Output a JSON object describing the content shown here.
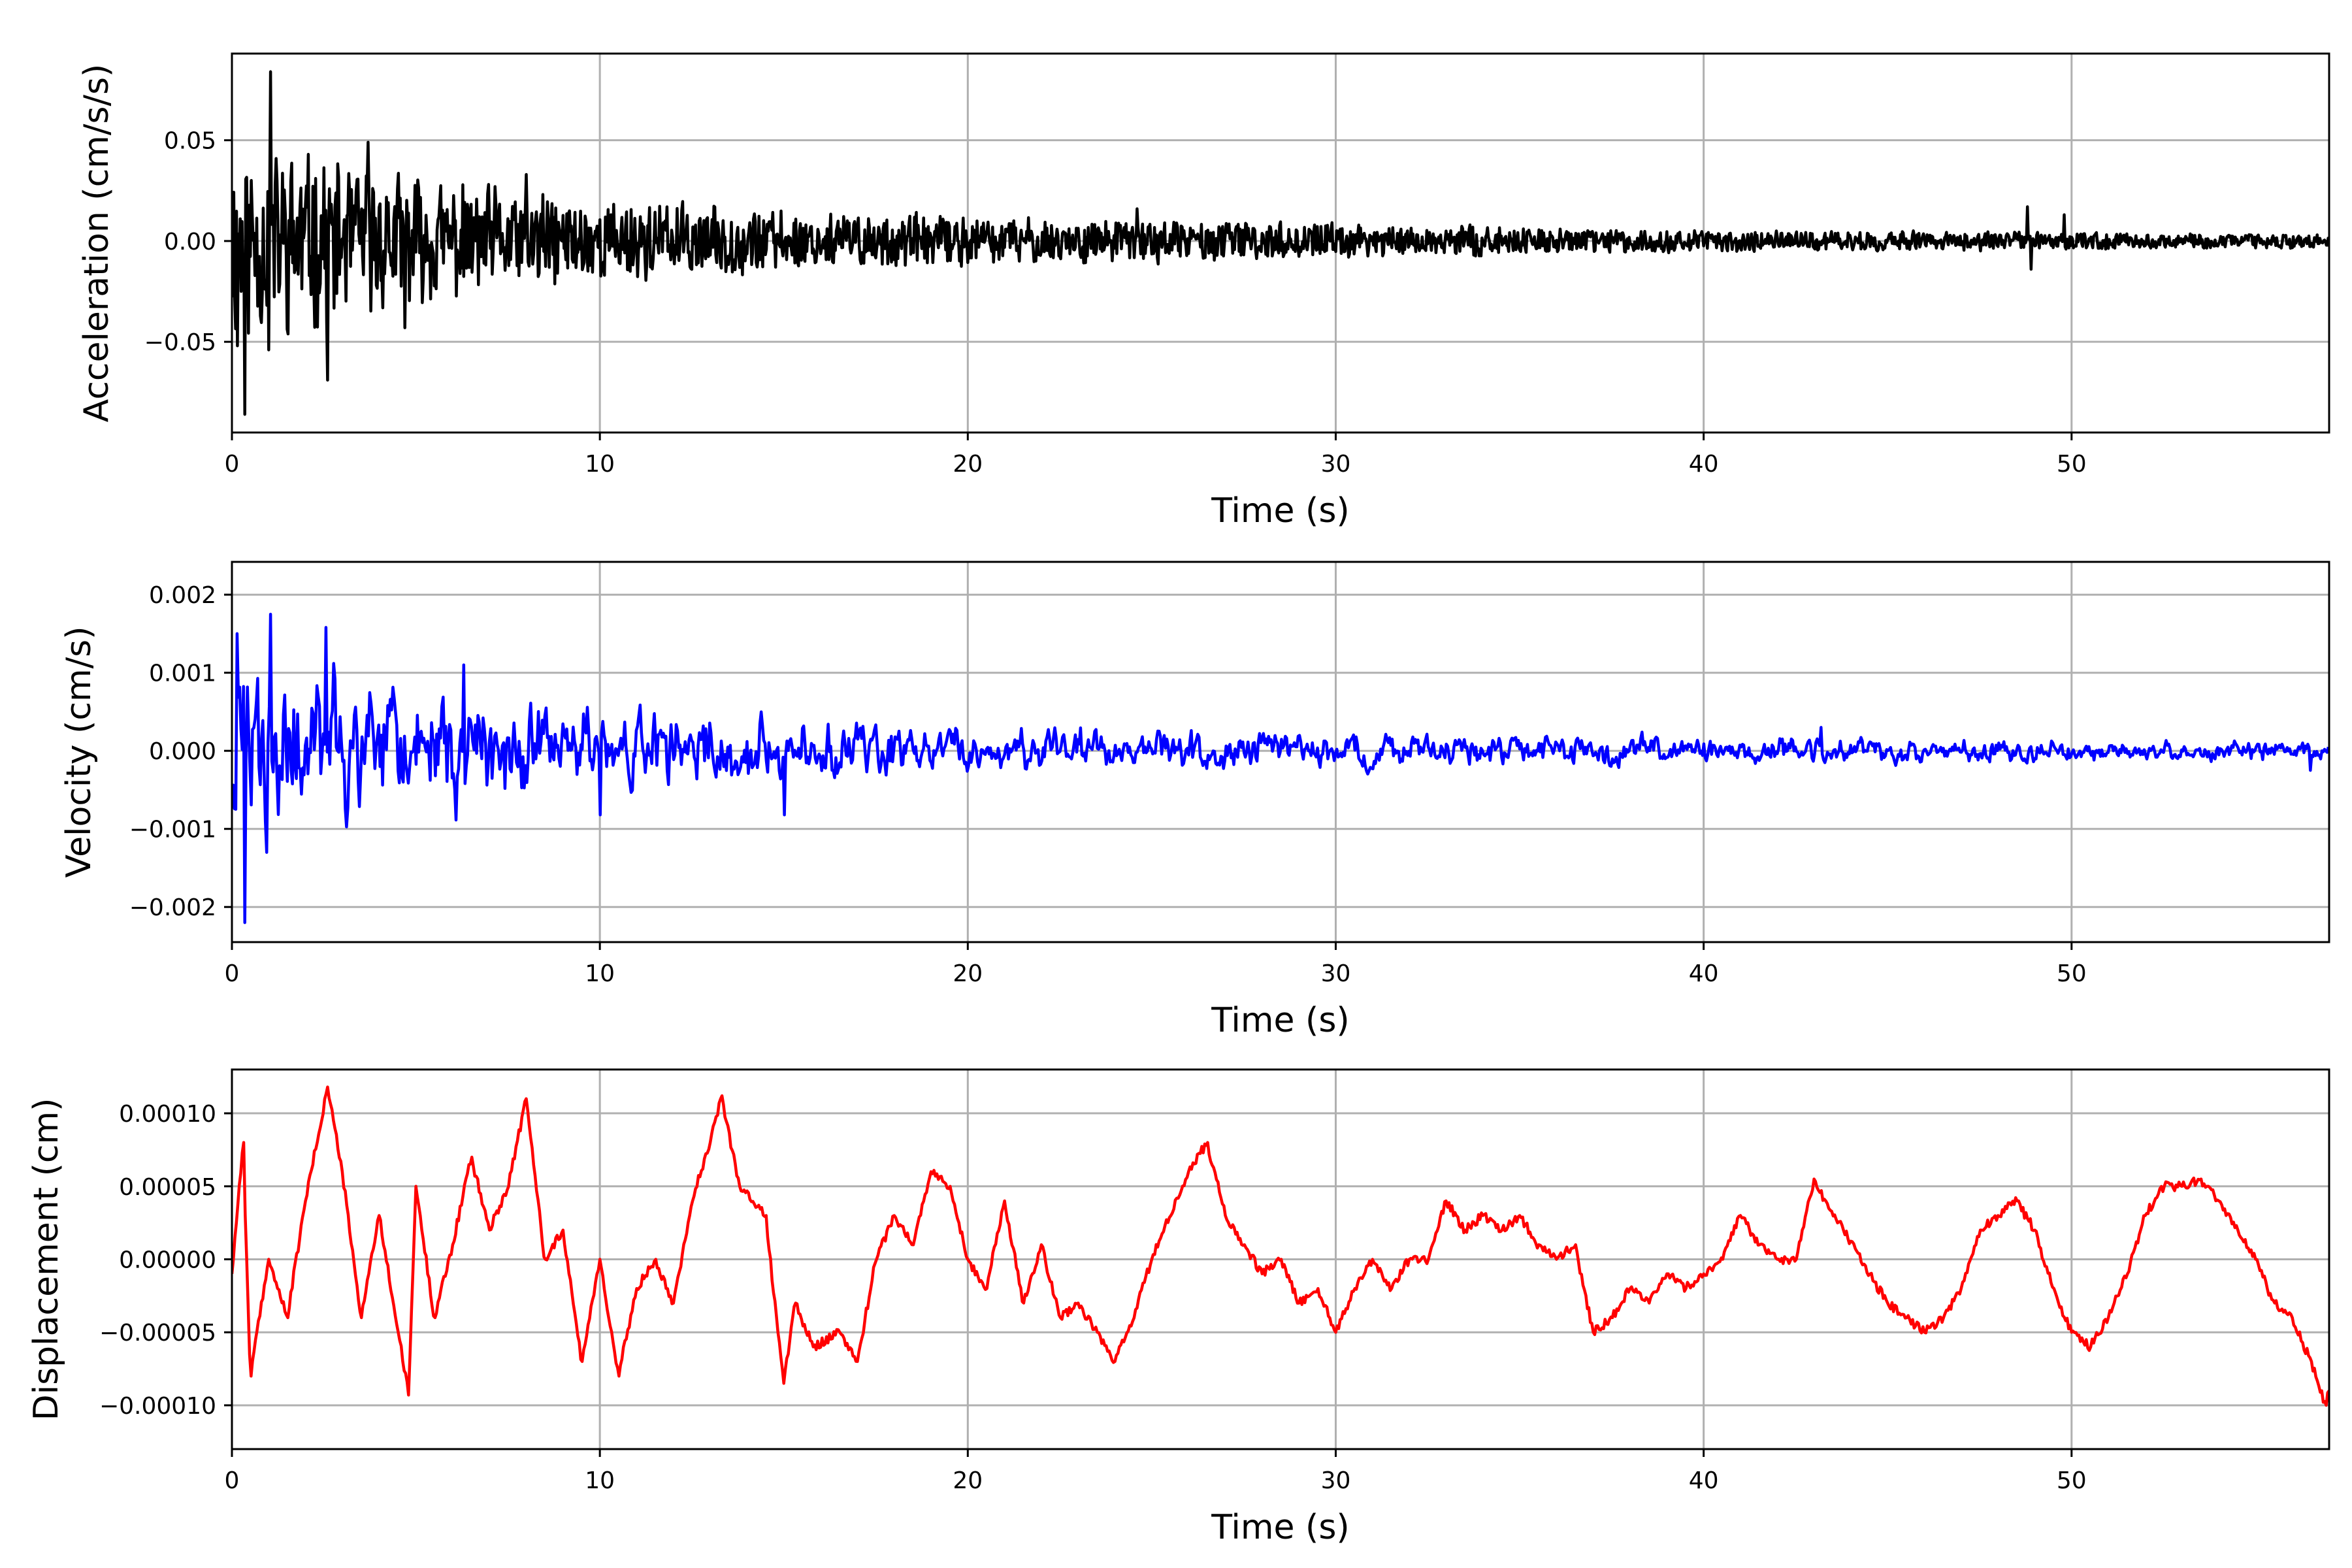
{
  "chart_data": [
    {
      "type": "line",
      "name": "acceleration",
      "xlabel": "Time (s)",
      "ylabel": "Acceleration (cm/s/s)",
      "xlim": [
        0,
        57
      ],
      "ylim": [
        -0.095,
        0.093
      ],
      "xticks": [
        0,
        10,
        20,
        30,
        40,
        50
      ],
      "xtick_labels": [
        "0",
        "10",
        "20",
        "30",
        "40",
        "50"
      ],
      "yticks": [
        0.05,
        0.0,
        -0.05
      ],
      "ytick_labels": [
        "0.05",
        "0.00",
        "−0.05"
      ],
      "grid": true,
      "color": "#000000",
      "envelope": [
        [
          0,
          0.03
        ],
        [
          2,
          0.025
        ],
        [
          5,
          0.018
        ],
        [
          10,
          0.012
        ],
        [
          15,
          0.009
        ],
        [
          20,
          0.007
        ],
        [
          25,
          0.006
        ],
        [
          30,
          0.005
        ],
        [
          40,
          0.003
        ],
        [
          50,
          0.0025
        ],
        [
          57,
          0.002
        ]
      ],
      "events": [
        [
          0.35,
          0.05
        ],
        [
          0.35,
          -0.086
        ],
        [
          1.05,
          0.084
        ],
        [
          0.15,
          -0.052
        ],
        [
          1.0,
          -0.054
        ],
        [
          2.6,
          -0.069
        ],
        [
          3.7,
          0.049
        ],
        [
          4.7,
          -0.043
        ],
        [
          8.0,
          0.033
        ],
        [
          24.6,
          0.016
        ],
        [
          48.8,
          0.017
        ],
        [
          48.9,
          -0.014
        ],
        [
          49.8,
          0.013
        ]
      ]
    },
    {
      "type": "line",
      "name": "velocity",
      "xlabel": "Time (s)",
      "ylabel": "Velocity (cm/s)",
      "xlim": [
        0,
        57
      ],
      "ylim": [
        -0.00245,
        0.00242
      ],
      "xticks": [
        0,
        10,
        20,
        30,
        40,
        50
      ],
      "xtick_labels": [
        "0",
        "10",
        "20",
        "30",
        "40",
        "50"
      ],
      "yticks": [
        0.002,
        0.001,
        0.0,
        -0.001,
        -0.002
      ],
      "ytick_labels": [
        "0.002",
        "0.001",
        "0.000",
        "−0.001",
        "−0.002"
      ],
      "grid": true,
      "color": "#0000ff",
      "envelope": [
        [
          0,
          0.0009
        ],
        [
          3,
          0.00075
        ],
        [
          6,
          0.0006
        ],
        [
          10,
          0.00045
        ],
        [
          15,
          0.00035
        ],
        [
          20,
          0.00025
        ],
        [
          30,
          0.00018
        ],
        [
          40,
          0.00014
        ],
        [
          50,
          0.00012
        ],
        [
          57,
          0.0001
        ]
      ],
      "events": [
        [
          0.15,
          0.0015
        ],
        [
          0.35,
          -0.0022
        ],
        [
          1.05,
          0.00175
        ],
        [
          0.95,
          -0.0013
        ],
        [
          2.55,
          0.00158
        ],
        [
          6.3,
          0.0011
        ],
        [
          10.0,
          -0.00082
        ],
        [
          15.0,
          -0.00082
        ],
        [
          43.2,
          0.0003
        ],
        [
          56.5,
          -0.00025
        ]
      ]
    },
    {
      "type": "line",
      "name": "displacement",
      "xlabel": "Time (s)",
      "ylabel": "Displacement (cm)",
      "xlim": [
        0,
        57
      ],
      "ylim": [
        -0.00013,
        0.00013
      ],
      "xticks": [
        0,
        10,
        20,
        30,
        40,
        50
      ],
      "xtick_labels": [
        "0",
        "10",
        "20",
        "30",
        "40",
        "50"
      ],
      "yticks": [
        0.0001,
        5e-05,
        0.0,
        -5e-05,
        -0.0001
      ],
      "ytick_labels": [
        "0.00010",
        "0.00005",
        "0.00000",
        "−0.00005",
        "−0.00010"
      ],
      "grid": true,
      "color": "#ff0000",
      "x": [
        0,
        0.3,
        0.5,
        1.0,
        1.5,
        2.0,
        2.6,
        3.0,
        3.5,
        4.0,
        4.8,
        5.0,
        5.5,
        6.0,
        6.5,
        7.0,
        7.5,
        8.0,
        8.5,
        9.0,
        9.5,
        10.0,
        10.5,
        11.0,
        11.5,
        12.0,
        12.5,
        13.0,
        13.3,
        13.8,
        14.5,
        15.0,
        15.3,
        15.8,
        16.5,
        17.0,
        17.5,
        18.0,
        18.5,
        19.0,
        19.5,
        20.0,
        20.5,
        21.0,
        21.5,
        22.0,
        22.5,
        23.0,
        23.5,
        24.0,
        24.5,
        25.0,
        25.5,
        26.0,
        26.5,
        27.0,
        27.5,
        28.0,
        28.5,
        29.0,
        29.5,
        30.0,
        30.5,
        31.0,
        31.5,
        32.0,
        32.5,
        33.0,
        33.5,
        34.0,
        34.5,
        35.0,
        35.5,
        36.0,
        36.5,
        37.0,
        37.5,
        38.0,
        38.5,
        39.0,
        39.5,
        40.0,
        40.5,
        41.0,
        41.5,
        42.0,
        42.5,
        43.0,
        43.3,
        43.8,
        44.5,
        45.0,
        45.5,
        46.0,
        46.5,
        47.0,
        47.5,
        48.0,
        48.5,
        49.0,
        49.5,
        50.0,
        50.5,
        51.0,
        51.5,
        52.0,
        52.5,
        53.0,
        53.5,
        54.0,
        54.5,
        55.0,
        55.5,
        56.0,
        56.5,
        56.9,
        57.0
      ],
      "y": [
        -1e-05,
        8e-05,
        -8e-05,
        0.0,
        -4e-05,
        4e-05,
        0.000118,
        6e-05,
        -4e-05,
        3e-05,
        -9.3e-05,
        5e-05,
        -4e-05,
        1e-05,
        7e-05,
        2e-05,
        5e-05,
        0.00011,
        0.0,
        2e-05,
        -7e-05,
        0.0,
        -8e-05,
        -2e-05,
        0.0,
        -3e-05,
        4e-05,
        8e-05,
        0.000112,
        5e-05,
        3e-05,
        -8.5e-05,
        -3e-05,
        -6e-05,
        -5e-05,
        -7e-05,
        0.0,
        3e-05,
        1e-05,
        6e-05,
        5e-05,
        0.0,
        -2e-05,
        4e-05,
        -3e-05,
        1e-05,
        -4e-05,
        -3e-05,
        -5e-05,
        -7e-05,
        -4e-05,
        0.0,
        3e-05,
        6e-05,
        8e-05,
        3e-05,
        1e-05,
        -1e-05,
        0.0,
        -3e-05,
        -2e-05,
        -5e-05,
        -2e-05,
        0.0,
        -2e-05,
        0.0,
        0.0,
        4e-05,
        2e-05,
        3e-05,
        2e-05,
        3e-05,
        1e-05,
        0.0,
        1e-05,
        -5e-05,
        -4e-05,
        -2e-05,
        -3e-05,
        -1e-05,
        -2e-05,
        -1e-05,
        0.0,
        3e-05,
        1e-05,
        0.0,
        0.0,
        5.5e-05,
        4e-05,
        2e-05,
        -1e-05,
        -3e-05,
        -4e-05,
        -5e-05,
        -4e-05,
        -2e-05,
        2e-05,
        3e-05,
        4e-05,
        2e-05,
        -2e-05,
        -5e-05,
        -6e-05,
        -4e-05,
        -1e-05,
        3e-05,
        5e-05,
        5e-05,
        5.5e-05,
        4e-05,
        2e-05,
        0.0,
        -3e-05,
        -4e-05,
        -7e-05,
        -0.0001,
        -9e-05
      ]
    }
  ]
}
